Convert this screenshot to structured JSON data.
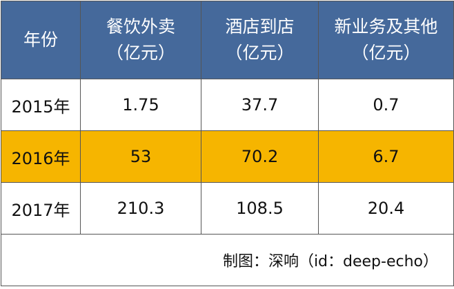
{
  "table": {
    "header": [
      {
        "title": "年份"
      },
      {
        "title": "餐饮外卖",
        "unit": "（亿元）"
      },
      {
        "title": "酒店到店",
        "unit": "（亿元）"
      },
      {
        "title": "新业务及其他",
        "unit": "（亿元）"
      }
    ],
    "rows": [
      [
        "2015年",
        "1.75",
        "37.7",
        "0.7"
      ],
      [
        "2016年",
        "53",
        "70.2",
        "6.7"
      ],
      [
        "2017年",
        "210.3",
        "108.5",
        "20.4"
      ]
    ],
    "footer": "制图：深响（id：deep-echo）"
  }
}
